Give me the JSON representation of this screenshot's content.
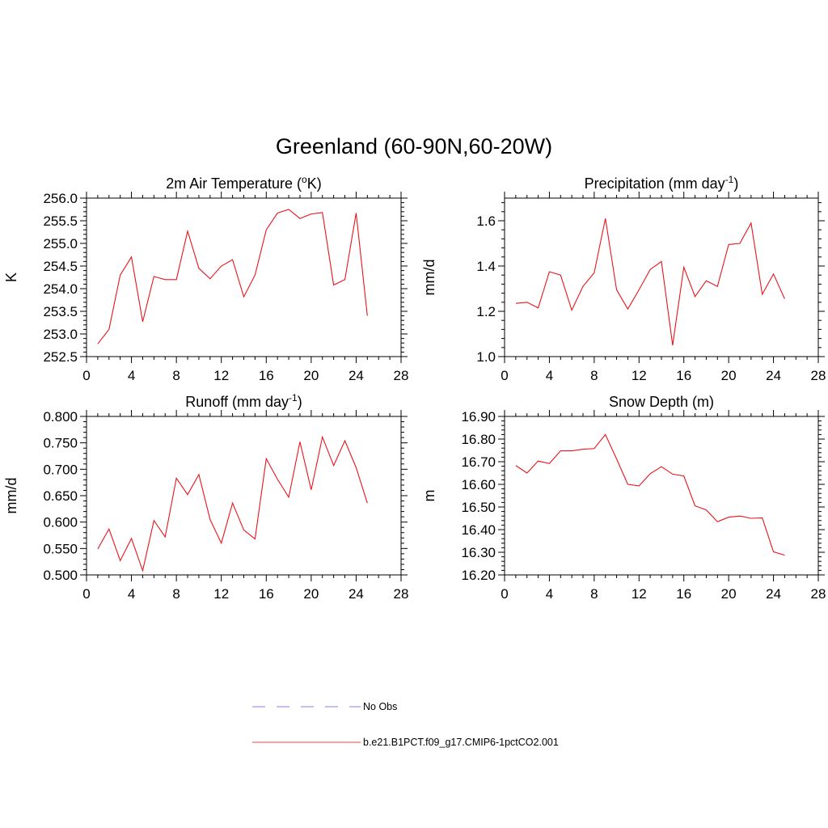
{
  "figure": {
    "title": "Greenland (60-90N,60-20W)"
  },
  "legend": {
    "entries": [
      {
        "label": "No Obs",
        "color": "#9a9aff",
        "dash": true
      },
      {
        "label": "b.e21.B1PCT.f09_g17.CMIP6-1pctCO2.001",
        "color": "#ff6666",
        "dash": false
      }
    ]
  },
  "chart_data": [
    {
      "type": "line",
      "title_main": "2m Air Temperature (",
      "title_sup": "o",
      "title_tail": "K)",
      "ylabel": "K",
      "x": [
        1,
        2,
        3,
        4,
        5,
        6,
        7,
        8,
        9,
        10,
        11,
        12,
        13,
        14,
        15,
        16,
        17,
        18,
        19,
        20,
        21,
        22,
        23,
        24,
        25
      ],
      "series": [
        {
          "color": "#e8141c",
          "values": [
            252.78,
            253.1,
            254.3,
            254.7,
            253.27,
            254.27,
            254.2,
            254.2,
            255.27,
            254.45,
            254.22,
            254.5,
            254.64,
            253.82,
            254.3,
            255.3,
            255.67,
            255.75,
            255.55,
            255.65,
            255.68,
            254.08,
            254.2,
            255.67,
            253.4
          ]
        }
      ],
      "xlim": [
        0,
        28
      ],
      "ylim": [
        252.5,
        256.0
      ],
      "xticks": [
        0,
        4,
        8,
        12,
        16,
        20,
        24,
        28
      ],
      "yticks": [
        252.5,
        253.0,
        253.5,
        254.0,
        254.5,
        255.0,
        255.5,
        256.0
      ],
      "ydecimals": 1
    },
    {
      "type": "line",
      "title_main": "Precipitation (mm day",
      "title_sup": "-1",
      "title_tail": ")",
      "ylabel": "mm/d",
      "x": [
        1,
        2,
        3,
        4,
        5,
        6,
        7,
        8,
        9,
        10,
        11,
        12,
        13,
        14,
        15,
        16,
        17,
        18,
        19,
        20,
        21,
        22,
        23,
        24,
        25
      ],
      "series": [
        {
          "color": "#e8141c",
          "values": [
            1.235,
            1.24,
            1.215,
            1.375,
            1.36,
            1.205,
            1.31,
            1.37,
            1.61,
            1.295,
            1.21,
            1.295,
            1.385,
            1.42,
            1.05,
            1.395,
            1.265,
            1.335,
            1.31,
            1.495,
            1.5,
            1.59,
            1.275,
            1.365,
            1.255
          ]
        }
      ],
      "xlim": [
        0,
        28
      ],
      "ylim": [
        1.0,
        1.7
      ],
      "xticks": [
        0,
        4,
        8,
        12,
        16,
        20,
        24,
        28
      ],
      "yticks": [
        1.0,
        1.2,
        1.4,
        1.6
      ],
      "ydecimals": 1
    },
    {
      "type": "line",
      "title_main": "Runoff (mm day",
      "title_sup": "-1",
      "title_tail": ")",
      "ylabel": "mm/d",
      "x": [
        1,
        2,
        3,
        4,
        5,
        6,
        7,
        8,
        9,
        10,
        11,
        12,
        13,
        14,
        15,
        16,
        17,
        18,
        19,
        20,
        21,
        22,
        23,
        24,
        25
      ],
      "series": [
        {
          "color": "#e8141c",
          "values": [
            0.549,
            0.587,
            0.527,
            0.569,
            0.508,
            0.603,
            0.572,
            0.683,
            0.652,
            0.69,
            0.605,
            0.56,
            0.636,
            0.585,
            0.568,
            0.72,
            0.681,
            0.647,
            0.752,
            0.661,
            0.761,
            0.707,
            0.754,
            0.703,
            0.636
          ]
        }
      ],
      "xlim": [
        0,
        28
      ],
      "ylim": [
        0.5,
        0.8
      ],
      "xticks": [
        0,
        4,
        8,
        12,
        16,
        20,
        24,
        28
      ],
      "yticks": [
        0.5,
        0.55,
        0.6,
        0.65,
        0.7,
        0.75,
        0.8
      ],
      "ydecimals": 3
    },
    {
      "type": "line",
      "title_main": "Snow Depth (m)",
      "title_sup": "",
      "title_tail": "",
      "ylabel": "m",
      "x": [
        1,
        2,
        3,
        4,
        5,
        6,
        7,
        8,
        9,
        10,
        11,
        12,
        13,
        14,
        15,
        16,
        17,
        18,
        19,
        20,
        21,
        22,
        23,
        24,
        25
      ],
      "series": [
        {
          "color": "#e8141c",
          "values": [
            16.683,
            16.65,
            16.703,
            16.692,
            16.748,
            16.748,
            16.755,
            16.758,
            16.82,
            16.712,
            16.6,
            16.593,
            16.647,
            16.678,
            16.645,
            16.637,
            16.505,
            16.487,
            16.435,
            16.455,
            16.46,
            16.45,
            16.452,
            16.302,
            16.287
          ]
        }
      ],
      "xlim": [
        0,
        28
      ],
      "ylim": [
        16.2,
        16.9
      ],
      "xticks": [
        0,
        4,
        8,
        12,
        16,
        20,
        24,
        28
      ],
      "yticks": [
        16.2,
        16.3,
        16.4,
        16.5,
        16.6,
        16.7,
        16.8,
        16.9
      ],
      "ydecimals": 2
    }
  ]
}
